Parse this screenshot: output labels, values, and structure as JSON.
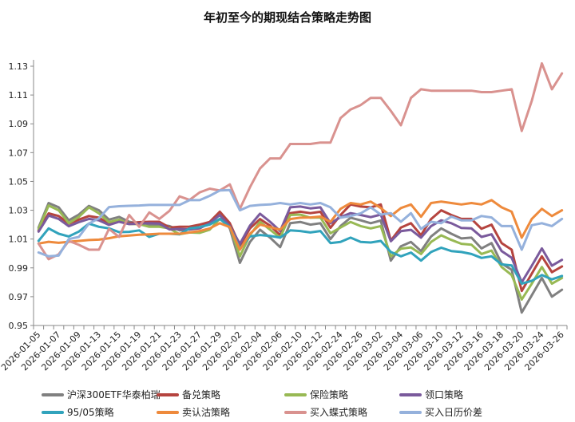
{
  "chart_data": {
    "type": "line",
    "title": "年初至今的期现结合策略走势图",
    "xlabel": "",
    "ylabel": "",
    "ylim": [
      0.95,
      1.13
    ],
    "yticks": [
      "0.95",
      "0.97",
      "0.99",
      "1.01",
      "1.03",
      "1.05",
      "1.07",
      "1.09",
      "1.11",
      "1.13"
    ],
    "grid": false,
    "legend_position": "bottom",
    "x": [
      "2026-01-05",
      "2026-01-06",
      "2026-01-07",
      "2026-01-08",
      "2026-01-09",
      "2026-01-12",
      "2026-01-13",
      "2026-01-14",
      "2026-01-15",
      "2026-01-16",
      "2026-01-19",
      "2026-01-20",
      "2026-01-21",
      "2026-01-22",
      "2026-01-23",
      "2026-01-26",
      "2026-01-27",
      "2026-01-28",
      "2026-01-29",
      "2026-01-30",
      "2026-02-02",
      "2026-02-03",
      "2026-02-04",
      "2026-02-05",
      "2026-02-06",
      "2026-02-09",
      "2026-02-10",
      "2026-02-11",
      "2026-02-12",
      "2026-02-13",
      "2026-02-24",
      "2026-02-25",
      "2026-02-26",
      "2026-02-27",
      "2026-03-02",
      "2026-03-03",
      "2026-03-04",
      "2026-03-05",
      "2026-03-06",
      "2026-03-09",
      "2026-03-10",
      "2026-03-11",
      "2026-03-12",
      "2026-03-13",
      "2026-03-16",
      "2026-03-17",
      "2026-03-18",
      "2026-03-19",
      "2026-03-20",
      "2026-03-23",
      "2026-03-24",
      "2026-03-25",
      "2026-03-26"
    ],
    "xtick_labels": [
      "2026-01-05",
      "2026-01-07",
      "2026-01-09",
      "2026-01-13",
      "2026-01-15",
      "2026-01-19",
      "2026-01-21",
      "2026-01-23",
      "2026-01-27",
      "2026-01-29",
      "2026-02-02",
      "2026-02-04",
      "2026-02-06",
      "2026-02-10",
      "2026-02-12",
      "2026-02-24",
      "2026-02-26",
      "2026-03-02",
      "2026-03-04",
      "2026-03-06",
      "2026-03-10",
      "2026-03-12",
      "2026-03-16",
      "2026-03-18",
      "2026-03-20",
      "2026-03-24",
      "2026-03-26"
    ],
    "series": [
      {
        "name": "沪深300ETF华泰柏瑞",
        "color": "#808080",
        "values": [
          1.018,
          1.035,
          1.032,
          1.023,
          1.027,
          1.033,
          1.03,
          1.0235,
          1.0254,
          1.022,
          1.0207,
          1.02,
          1.02,
          1.019,
          1.016,
          1.0167,
          1.018,
          1.021,
          1.0267,
          1.0174,
          0.9935,
          1.008,
          1.0165,
          1.011,
          1.0044,
          1.021,
          1.0219,
          1.02,
          1.021,
          1.01,
          1.019,
          1.0248,
          1.023,
          1.021,
          1.0229,
          0.995,
          1.005,
          1.008,
          1.0017,
          1.0118,
          1.0174,
          1.0137,
          1.0104,
          1.011,
          1.0035,
          1.0072,
          0.993,
          0.9887,
          0.959,
          0.971,
          0.983,
          0.97,
          0.9748
        ]
      },
      {
        "name": "备兑策略",
        "color": "#b5443f",
        "values": [
          1.016,
          1.0278,
          1.026,
          1.0207,
          1.0235,
          1.026,
          1.0248,
          1.0207,
          1.0226,
          1.021,
          1.0217,
          1.022,
          1.022,
          1.018,
          1.0185,
          1.0186,
          1.02,
          1.0219,
          1.029,
          1.021,
          1.0054,
          1.0174,
          1.0239,
          1.0193,
          1.0128,
          1.028,
          1.029,
          1.028,
          1.0289,
          1.0178,
          1.0267,
          1.034,
          1.0326,
          1.032,
          1.034,
          1.009,
          1.018,
          1.021,
          1.0127,
          1.0239,
          1.03,
          1.0267,
          1.024,
          1.024,
          1.0171,
          1.02,
          1.0072,
          1.0026,
          0.974,
          0.986,
          0.998,
          0.987,
          0.991
        ]
      },
      {
        "name": "保险策略",
        "color": "#98b954",
        "values": [
          1.017,
          1.0333,
          1.03,
          1.021,
          1.0254,
          1.032,
          1.0278,
          1.0217,
          1.0235,
          1.0204,
          1.0204,
          1.0185,
          1.0185,
          1.0174,
          1.0133,
          1.0146,
          1.0143,
          1.0165,
          1.024,
          1.019,
          0.998,
          1.0128,
          1.022,
          1.0165,
          1.011,
          1.0267,
          1.027,
          1.0248,
          1.025,
          1.014,
          1.018,
          1.0219,
          1.019,
          1.0174,
          1.019,
          0.998,
          1.0033,
          1.0042,
          0.9996,
          1.008,
          1.0126,
          1.0094,
          1.0067,
          1.0061,
          0.9996,
          1.002,
          0.9906,
          0.985,
          0.968,
          0.979,
          0.9906,
          0.979,
          0.983
        ]
      },
      {
        "name": "领口策略",
        "color": "#7a5a9c",
        "values": [
          1.0152,
          1.0263,
          1.024,
          1.0189,
          1.0217,
          1.024,
          1.023,
          1.0198,
          1.022,
          1.0204,
          1.0207,
          1.021,
          1.0207,
          1.0167,
          1.017,
          1.0167,
          1.0174,
          1.021,
          1.0267,
          1.019,
          1.0067,
          1.0193,
          1.0276,
          1.022,
          1.0156,
          1.032,
          1.0326,
          1.0313,
          1.032,
          1.021,
          1.0252,
          1.028,
          1.0267,
          1.0252,
          1.027,
          1.0085,
          1.0155,
          1.0164,
          1.011,
          1.019,
          1.023,
          1.021,
          1.0177,
          1.0174,
          1.0115,
          1.0133,
          1.0017,
          0.997,
          0.98,
          0.9915,
          1.0035,
          0.9915,
          0.9956
        ]
      },
      {
        "name": "95/05策略",
        "color": "#31a3bc",
        "values": [
          1.0087,
          1.0174,
          1.0137,
          1.0118,
          1.0152,
          1.0207,
          1.0185,
          1.0174,
          1.0148,
          1.015,
          1.016,
          1.0115,
          1.0137,
          1.0137,
          1.0133,
          1.0174,
          1.0183,
          1.02,
          1.024,
          1.0183,
          1.0035,
          1.0118,
          1.0128,
          1.0122,
          1.011,
          1.016,
          1.0156,
          1.0146,
          1.0156,
          1.0072,
          1.008,
          1.011,
          1.008,
          1.0076,
          1.0087,
          1.001,
          0.998,
          1.0006,
          0.995,
          1.001,
          1.004,
          1.0017,
          1.001,
          0.9996,
          0.9969,
          0.998,
          0.9924,
          0.9917,
          0.979,
          0.981,
          0.985,
          0.982,
          0.9844
        ]
      },
      {
        "name": "卖认沽策略",
        "color": "#ee8a3c",
        "values": [
          1.0069,
          1.0081,
          1.0074,
          1.0081,
          1.0087,
          1.0093,
          1.0096,
          1.0106,
          1.0119,
          1.0124,
          1.013,
          1.0133,
          1.0137,
          1.0137,
          1.0137,
          1.0146,
          1.0156,
          1.0174,
          1.021,
          1.0183,
          1.0026,
          1.0137,
          1.02,
          1.0183,
          1.0165,
          1.0239,
          1.0248,
          1.025,
          1.0256,
          1.0219,
          1.031,
          1.035,
          1.034,
          1.036,
          1.0315,
          1.026,
          1.0315,
          1.034,
          1.0255,
          1.035,
          1.036,
          1.035,
          1.034,
          1.035,
          1.034,
          1.037,
          1.032,
          1.029,
          1.011,
          1.024,
          1.031,
          1.026,
          1.03
        ]
      },
      {
        "name": "买入蝶式策略",
        "color": "#d9928f",
        "values": [
          1.0069,
          0.996,
          0.9994,
          1.0087,
          1.006,
          1.0026,
          1.0026,
          1.017,
          1.0115,
          1.0267,
          1.0185,
          1.0285,
          1.024,
          1.0296,
          1.0396,
          1.0372,
          1.0424,
          1.045,
          1.0437,
          1.048,
          1.031,
          1.046,
          1.059,
          1.066,
          1.066,
          1.076,
          1.076,
          1.076,
          1.077,
          1.077,
          1.094,
          1.1,
          1.103,
          1.108,
          1.108,
          1.099,
          1.089,
          1.108,
          1.114,
          1.113,
          1.113,
          1.113,
          1.113,
          1.113,
          1.112,
          1.112,
          1.113,
          1.114,
          1.085,
          1.106,
          1.132,
          1.114,
          1.125
        ]
      },
      {
        "name": "买入日历价差",
        "color": "#95b1dc",
        "values": [
          1.0007,
          0.998,
          0.9985,
          1.01,
          1.0115,
          1.0207,
          1.0244,
          1.0322,
          1.0328,
          1.0331,
          1.0333,
          1.0337,
          1.0337,
          1.0337,
          1.0337,
          1.037,
          1.037,
          1.04,
          1.0437,
          1.044,
          1.03,
          1.033,
          1.0337,
          1.034,
          1.035,
          1.034,
          1.035,
          1.034,
          1.035,
          1.032,
          1.0248,
          1.026,
          1.0278,
          1.032,
          1.027,
          1.028,
          1.022,
          1.028,
          1.017,
          1.022,
          1.021,
          1.0256,
          1.023,
          1.023,
          1.026,
          1.025,
          1.019,
          1.019,
          1.0026,
          1.0196,
          1.021,
          1.019,
          1.024
        ]
      }
    ]
  }
}
